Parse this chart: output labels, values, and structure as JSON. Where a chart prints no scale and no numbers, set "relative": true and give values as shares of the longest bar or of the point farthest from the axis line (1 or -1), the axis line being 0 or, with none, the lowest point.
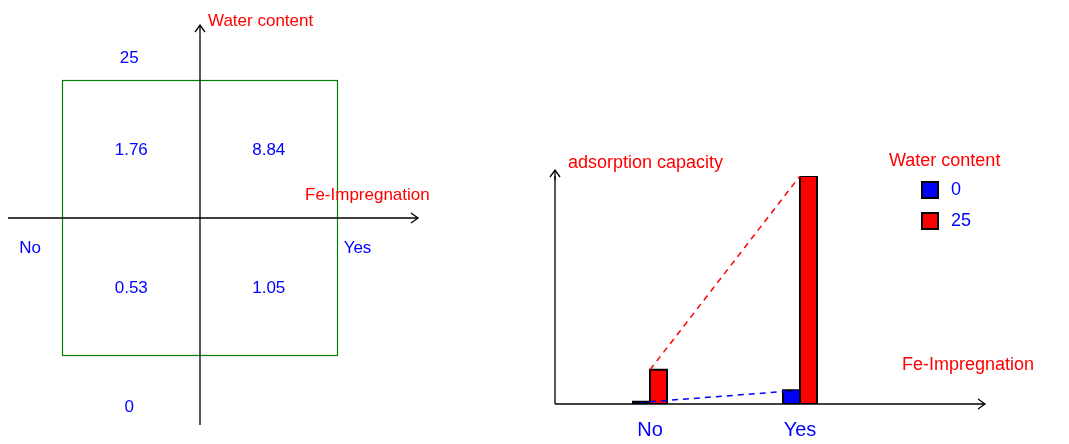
{
  "chart_data": [
    {
      "type": "heatmap",
      "xlabel": "Fe-Impregnation",
      "ylabel": "Water content",
      "categories": [
        "No",
        "Yes"
      ],
      "y_categories": [
        "25",
        "0"
      ],
      "cells": [
        [
          1.76,
          8.84
        ],
        [
          0.53,
          1.05
        ]
      ],
      "data_labels": true
    },
    {
      "type": "bar",
      "relative": true,
      "ylabel": "adsorption capacity",
      "xlabel": "Fe-Impregnation",
      "legend_title": "Water content",
      "legend": "right",
      "categories": [
        "No",
        "Yes"
      ],
      "line_style": "dashed",
      "marker": "none",
      "series": [
        {
          "type": "line",
          "color": "#ff0000",
          "values": [
            0.15,
            1
          ]
        },
        {
          "type": "line",
          "color": "#0000ff",
          "values": [
            0.01,
            0.06
          ]
        },
        {
          "name": "0",
          "color": "#0000ff",
          "values": [
            0.01,
            0.06
          ]
        },
        {
          "name": "25",
          "color": "#ff0000",
          "values": [
            0.15,
            1
          ]
        }
      ]
    }
  ]
}
